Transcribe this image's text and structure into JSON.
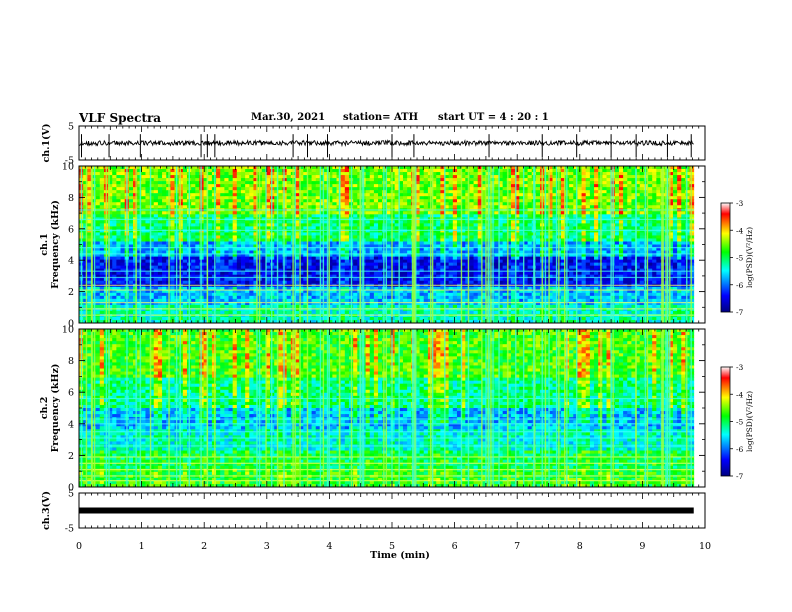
{
  "header": {
    "title": "VLF Spectra",
    "date": "Mar.30, 2021",
    "station": "station= ATH",
    "start": "start  UT =   4 : 20 : 1"
  },
  "chart_data": [
    {
      "type": "line",
      "panel": "ch1-waveform",
      "ylabel": "ch.1(V)",
      "ylim": [
        -5,
        5
      ],
      "yticks": [
        "5",
        "-5"
      ],
      "xlim": [
        0,
        10
      ],
      "baseline": 0,
      "noise": "small",
      "spike_times": [
        0.04,
        0.48,
        0.98,
        1.95,
        2.05,
        2.17,
        3.42,
        3.65,
        3.97,
        5.0,
        5.35,
        6.55,
        7.4,
        7.95,
        8.5,
        8.9,
        9.4,
        9.78
      ]
    },
    {
      "type": "heatmap",
      "panel": "ch1-spectrogram",
      "ylabel": "ch.1",
      "ylabel2": "Frequency (kHz)",
      "ylim": [
        0,
        10
      ],
      "yticks": [
        "0",
        "2",
        "4",
        "6",
        "8",
        "10"
      ],
      "xlim": [
        0,
        10
      ],
      "colorbar": {
        "label": "log(PSD)(V²/Hz)",
        "ticks": [
          "-3",
          "-4",
          "-5",
          "-6",
          "-7"
        ],
        "range": [
          -7,
          -3
        ]
      },
      "colormap": [
        "#000080",
        "#0000ff",
        "#00ffff",
        "#00ff00",
        "#ffff00",
        "#ff0000",
        "#ffffff"
      ]
    },
    {
      "type": "heatmap",
      "panel": "ch2-spectrogram",
      "ylabel": "ch.2",
      "ylabel2": "Frequency (kHz)",
      "ylim": [
        0,
        10
      ],
      "yticks": [
        "0",
        "2",
        "4",
        "6",
        "8",
        "10"
      ],
      "xlim": [
        0,
        10
      ],
      "colorbar": {
        "label": "log(PSD)(V²/Hz)",
        "ticks": [
          "-3",
          "-4",
          "-5",
          "-6",
          "-7"
        ],
        "range": [
          -7,
          -3
        ]
      },
      "colormap": [
        "#000080",
        "#0000ff",
        "#00ffff",
        "#00ff00",
        "#ffff00",
        "#ff0000",
        "#ffffff"
      ]
    },
    {
      "type": "line",
      "panel": "ch3-waveform",
      "ylabel": "ch.3(V)",
      "ylim": [
        -5,
        5
      ],
      "yticks": [
        "5",
        "-5"
      ],
      "xlim": [
        0,
        10
      ],
      "baseline": 0,
      "noise": "none"
    }
  ],
  "xaxis": {
    "label": "Time (min)",
    "ticks": [
      "0",
      "1",
      "2",
      "3",
      "4",
      "5",
      "6",
      "7",
      "8",
      "9",
      "10"
    ]
  }
}
